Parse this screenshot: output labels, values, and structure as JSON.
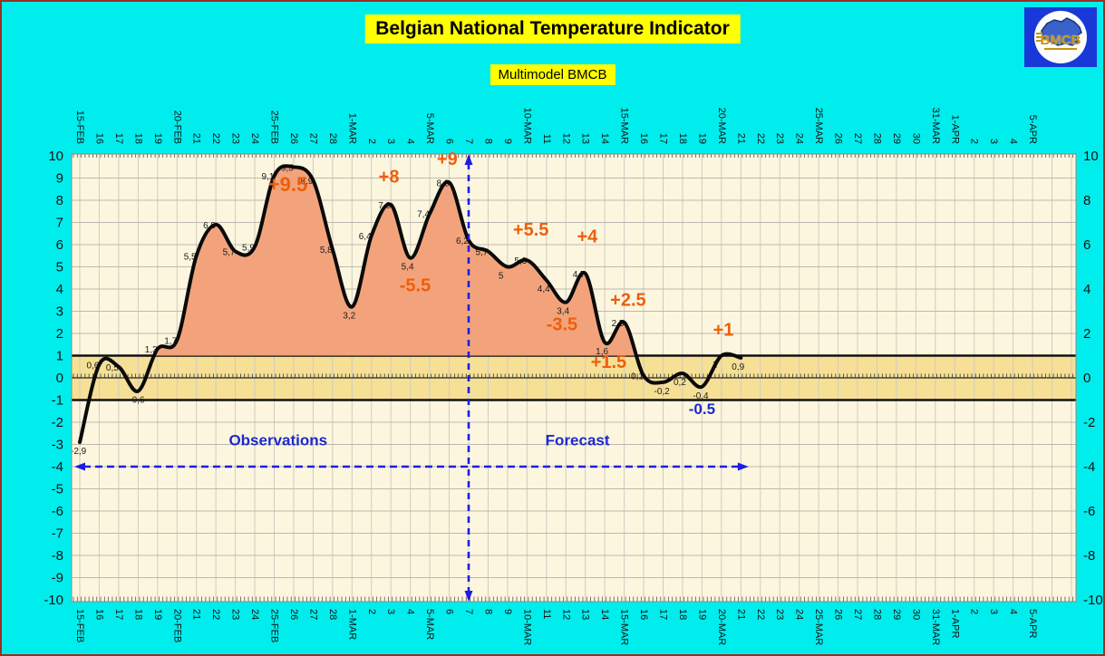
{
  "window": {
    "background": "#00EDED",
    "border_color": "#993122"
  },
  "header": {
    "title": "Belgian National Temperature Indicator",
    "subtitle": "Multimodel BMCB",
    "title_bg": "#FFFF00"
  },
  "logo": {
    "text": "BMCB",
    "bg": "#1838D8",
    "text_color": "#C79310"
  },
  "chart_data": {
    "type": "line",
    "title": "Belgian National Temperature Indicator",
    "subtitle": "Multimodel BMCB",
    "ylim": [
      -10,
      10
    ],
    "grid": "on",
    "x_labels": [
      "15-FEB",
      "16",
      "17",
      "18",
      "19",
      "20-FEB",
      "21",
      "22",
      "23",
      "24",
      "25-FEB",
      "26",
      "27",
      "28",
      "1-MAR",
      "2",
      "3",
      "4",
      "5-MAR",
      "6",
      "7",
      "8",
      "9",
      "10-MAR",
      "11",
      "12",
      "13",
      "14",
      "15-MAR",
      "16",
      "17",
      "18",
      "19",
      "20-MAR",
      "21",
      "22",
      "23",
      "24",
      "25-MAR",
      "26",
      "27",
      "28",
      "29",
      "30",
      "31-MAR",
      "1-APR",
      "2",
      "3",
      "4",
      "5-APR"
    ],
    "y_ticks_left": [
      10,
      9,
      8,
      7,
      6,
      5,
      4,
      3,
      2,
      1,
      0,
      -1,
      -2,
      -3,
      -4,
      -5,
      -6,
      -7,
      -8,
      -9,
      -10
    ],
    "y_ticks_right": [
      10,
      8,
      6,
      4,
      2,
      0,
      -2,
      -4,
      -6,
      -8,
      -10
    ],
    "series": [
      {
        "name": "national-temperature",
        "dates": [
          "15-FEB",
          "16-FEB",
          "17-FEB",
          "18-FEB",
          "19-FEB",
          "20-FEB",
          "21-FEB",
          "22-FEB",
          "23-FEB",
          "24-FEB",
          "25-FEB",
          "26-FEB",
          "27-FEB",
          "28-FEB",
          "1-MAR",
          "2-MAR",
          "3-MAR",
          "4-MAR",
          "5-MAR",
          "6-MAR",
          "7-MAR",
          "8-MAR",
          "9-MAR",
          "10-MAR",
          "11-MAR",
          "12-MAR",
          "13-MAR",
          "14-MAR",
          "15-MAR",
          "16-MAR",
          "17-MAR",
          "18-MAR",
          "19-MAR",
          "20-MAR",
          "21-MAR"
        ],
        "values": [
          -2.9,
          0.6,
          0.5,
          -0.6,
          1.3,
          1.7,
          5.5,
          6.9,
          5.7,
          5.9,
          9.1,
          9.5,
          8.9,
          5.8,
          3.2,
          6.4,
          7.8,
          5.4,
          7.4,
          8.8,
          6.2,
          5.7,
          5,
          5.3,
          4.4,
          3.4,
          4.7,
          1.6,
          2.5,
          0.1,
          -0.2,
          0.2,
          -0.4,
          1,
          0.9
        ],
        "point_labels": [
          "-2,9",
          "0,6",
          "0,5",
          "-0,6",
          "1,3",
          "1,7",
          "5,5",
          "6,9",
          "5,7",
          "5,9",
          "9,1",
          "9,5",
          "8,9",
          "5,8",
          "3,2",
          "6,4",
          "7,8",
          "5,4",
          "7,4",
          "8,8",
          "6,2",
          "5,7",
          "5",
          "5,3",
          "4,4",
          "3,4",
          "4,7",
          "1,6",
          "2,5",
          "0,1",
          "-0,2",
          "0,2",
          "-0,4",
          "1",
          "0,9"
        ],
        "label_pos": [
          "b",
          "",
          "",
          "b",
          "",
          "",
          "",
          "",
          "",
          "",
          "",
          "",
          "",
          "",
          "b",
          "",
          "",
          "b",
          "",
          "",
          "",
          "",
          "b",
          "",
          "b",
          "b",
          "",
          "b",
          "",
          "",
          "b",
          "b",
          "b",
          "b",
          "b"
        ]
      }
    ],
    "reference_band": {
      "from": -1,
      "to": 1
    },
    "divider": {
      "at_date": "7-MAR",
      "day_index": 20
    },
    "span_arrow": {
      "value": -4,
      "day_start": -0.28,
      "day_end": 34.4
    },
    "annotations_orange": [
      {
        "text": "+9.5",
        "day": 10.7,
        "value": 8.4,
        "size": 22
      },
      {
        "text": "+8",
        "day": 15.9,
        "value": 8.8,
        "size": 20
      },
      {
        "text": "+9",
        "day": 18.9,
        "value": 9.6,
        "size": 20
      },
      {
        "text": "+5.5",
        "day": 23.2,
        "value": 6.4,
        "size": 20
      },
      {
        "text": "+4",
        "day": 26.1,
        "value": 6.1,
        "size": 20
      },
      {
        "text": "+2.5",
        "day": 28.2,
        "value": 3.25,
        "size": 20
      },
      {
        "text": "+1",
        "day": 33.1,
        "value": 1.9,
        "size": 20
      },
      {
        "text": "-5.5",
        "day": 17.25,
        "value": 3.9,
        "size": 20
      },
      {
        "text": "-3.5",
        "day": 24.8,
        "value": 2.15,
        "size": 20
      },
      {
        "text": "+1.5",
        "day": 27.2,
        "value": 0.45,
        "size": 20
      }
    ],
    "annotations_blue": [
      {
        "text": "Observations",
        "day": 10.2,
        "value": -3.05,
        "size": 17
      },
      {
        "text": "Forecast",
        "day": 25.6,
        "value": -3.05,
        "size": 17
      },
      {
        "text": "-0.5",
        "day": 32.0,
        "value": -1.63,
        "size": 17
      }
    ],
    "colors": {
      "plot_bg": "#FCF6DF",
      "band_fill": "#F6E096",
      "band_line": "#111111",
      "v_grid": "#CFCBC0",
      "h_grid": "#BDB8AF",
      "area_fill": "#F3A37B",
      "curve": "#0A0A0A",
      "annotation_orange": "#EE5E09",
      "annotation_blue": "#1A2ACC",
      "dashed_blue": "#1E1EE0",
      "data_label": "#1C1C1C",
      "axis_text": "#111111"
    }
  }
}
